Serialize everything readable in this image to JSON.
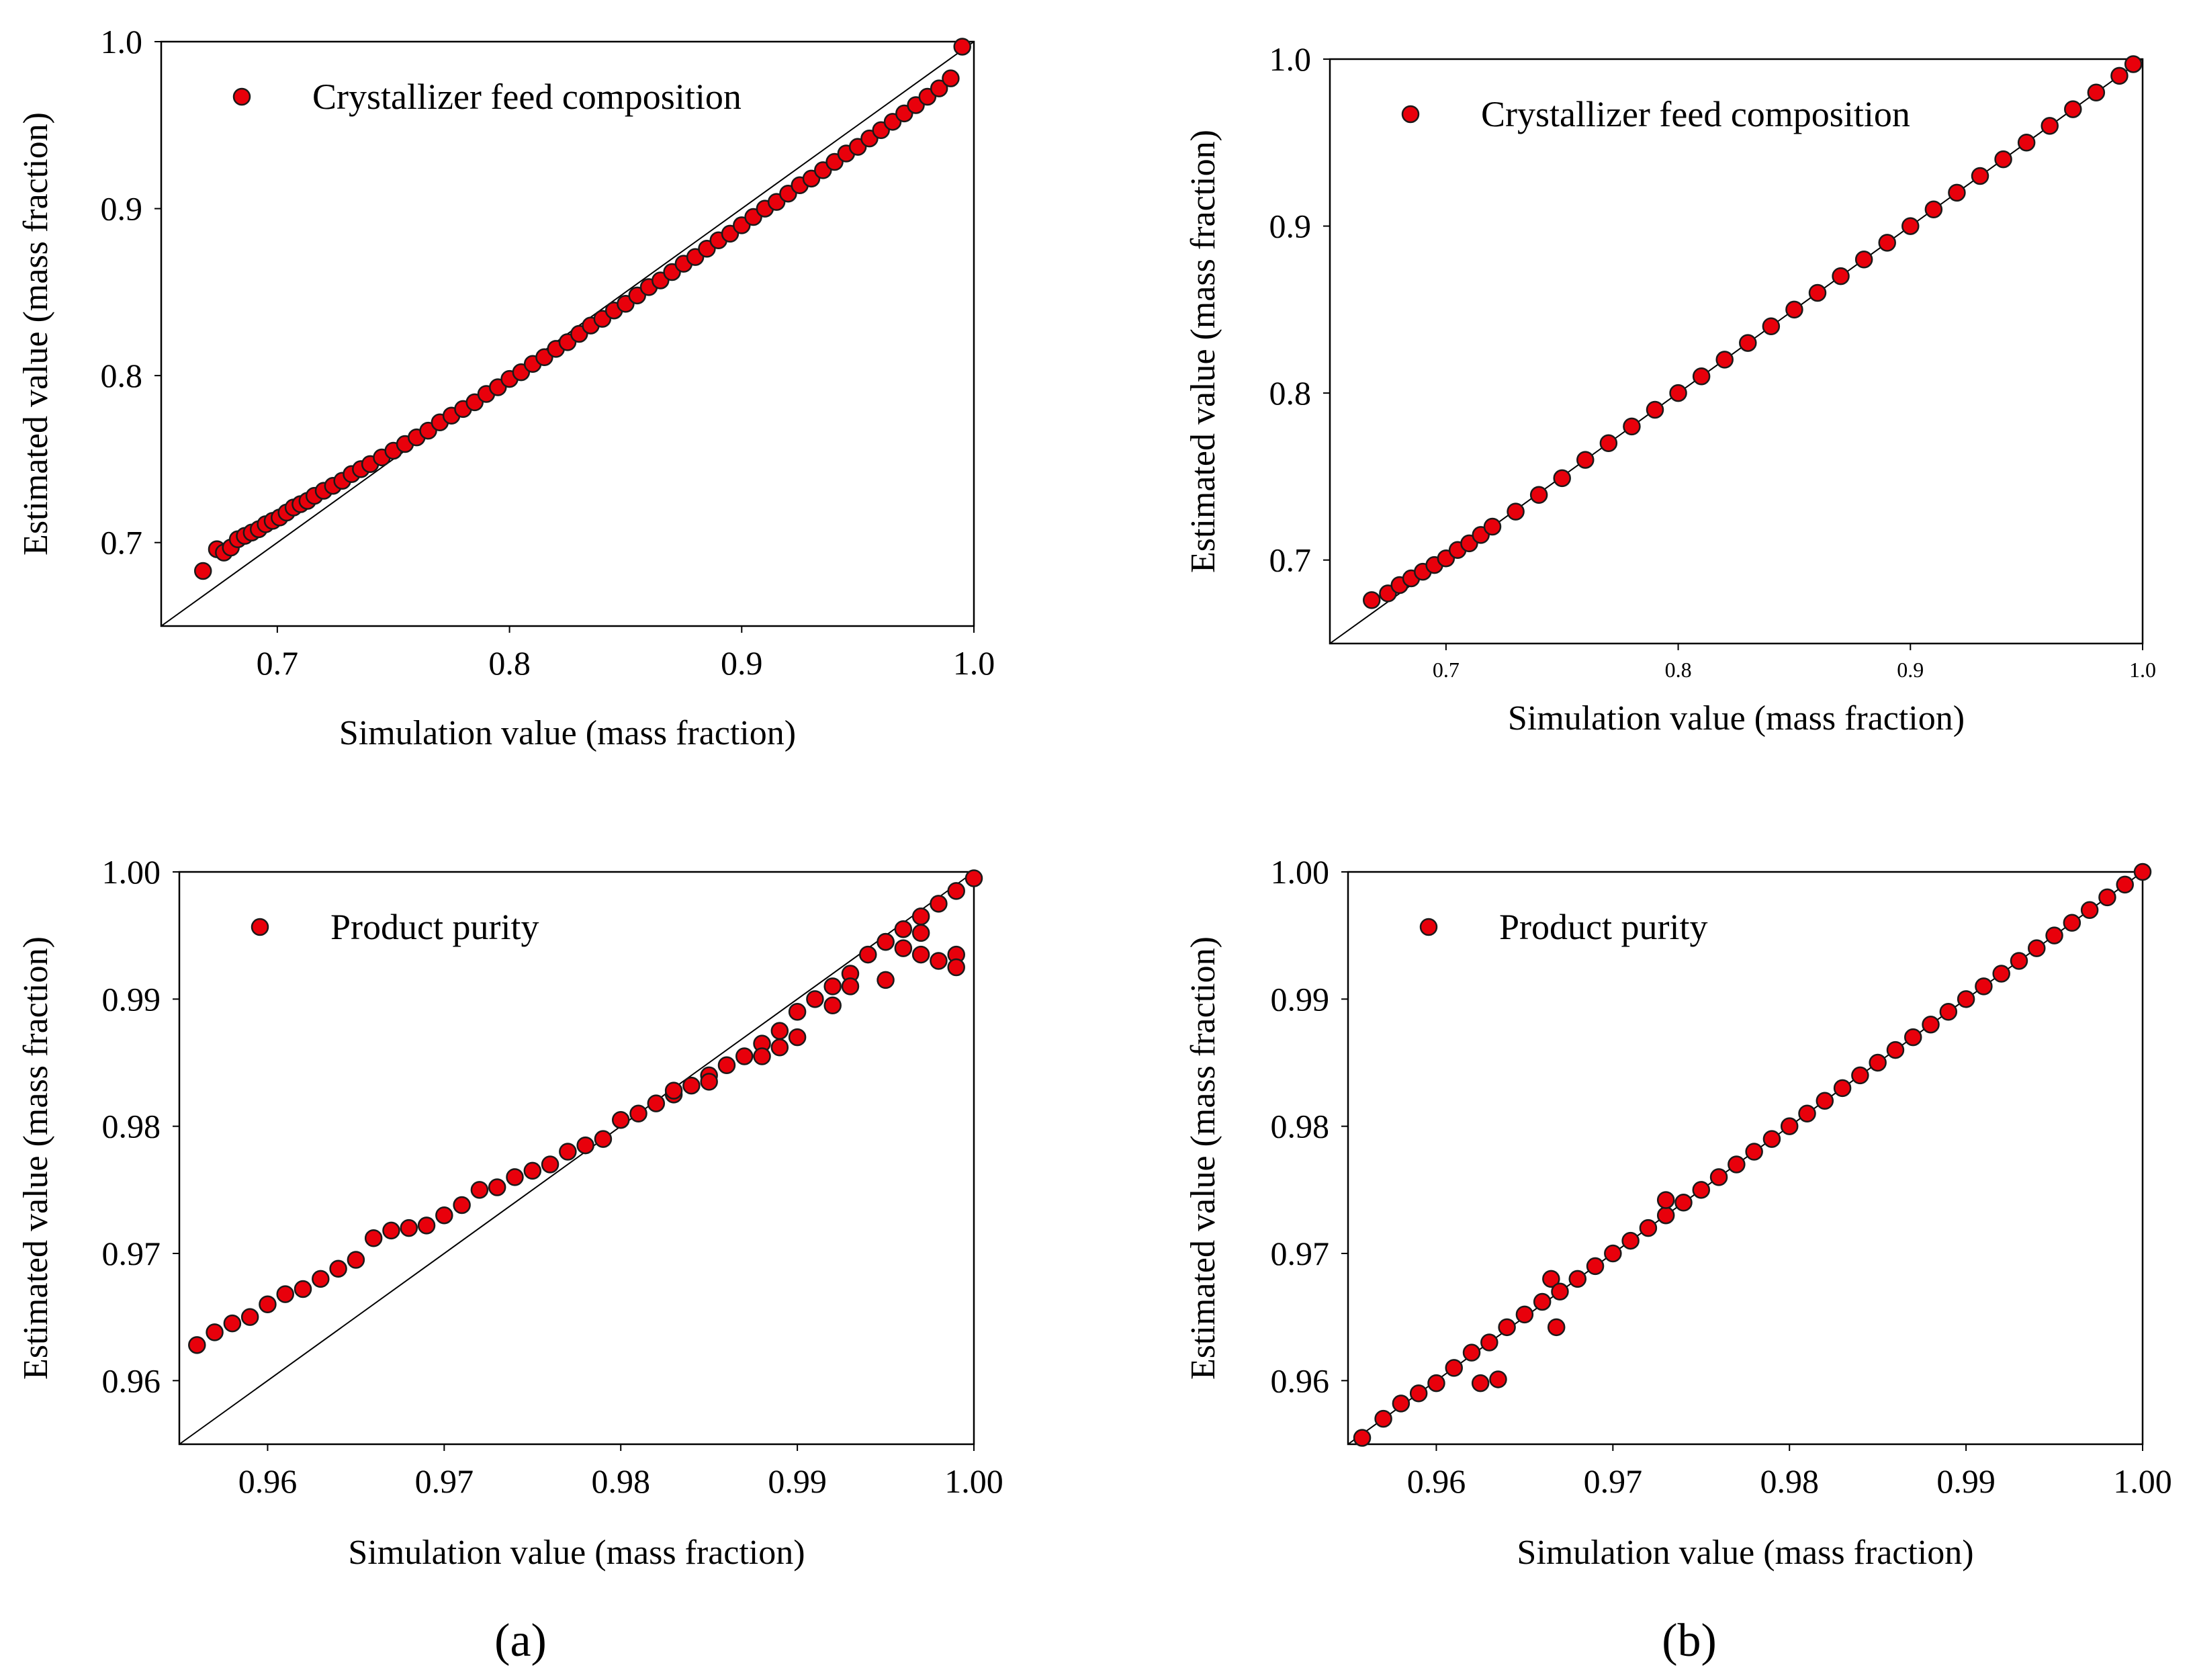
{
  "colors": {
    "marker_fill": "#e8000b",
    "marker_stroke": "#1a1a1a",
    "axis": "#000000",
    "diagonal": "#000000"
  },
  "captions": {
    "a": "(a)",
    "b": "(b)"
  },
  "chart_data": [
    {
      "id": "a1",
      "type": "scatter",
      "panel": "a",
      "legend": "Crystallizer feed composition",
      "legend_placement": "top-left",
      "xlabel": "Simulation value (mass fraction)",
      "ylabel": "Estimated value (mass fraction)",
      "xlim": [
        0.65,
        1.0
      ],
      "ylim": [
        0.65,
        1.0
      ],
      "xticks": [
        0.7,
        0.8,
        0.9,
        1.0
      ],
      "xtick_labels": [
        "0.7",
        "0.8",
        "0.9",
        "1.0"
      ],
      "yticks": [
        0.7,
        0.8,
        0.9,
        1.0
      ],
      "ytick_labels": [
        "0.7",
        "0.8",
        "0.9",
        "1.0"
      ],
      "diagonal": [
        [
          0.65,
          0.65
        ],
        [
          1.0,
          1.0
        ]
      ],
      "x": [
        0.668,
        0.674,
        0.677,
        0.68,
        0.683,
        0.686,
        0.689,
        0.692,
        0.695,
        0.698,
        0.701,
        0.704,
        0.707,
        0.71,
        0.713,
        0.716,
        0.72,
        0.724,
        0.728,
        0.732,
        0.736,
        0.74,
        0.745,
        0.75,
        0.755,
        0.76,
        0.765,
        0.77,
        0.775,
        0.78,
        0.785,
        0.79,
        0.795,
        0.8,
        0.805,
        0.81,
        0.815,
        0.82,
        0.825,
        0.83,
        0.835,
        0.84,
        0.845,
        0.85,
        0.855,
        0.86,
        0.865,
        0.87,
        0.875,
        0.88,
        0.885,
        0.89,
        0.895,
        0.9,
        0.905,
        0.91,
        0.915,
        0.92,
        0.925,
        0.93,
        0.935,
        0.94,
        0.945,
        0.95,
        0.955,
        0.96,
        0.965,
        0.97,
        0.975,
        0.98,
        0.985,
        0.99,
        0.995
      ],
      "y": [
        0.683,
        0.696,
        0.694,
        0.697,
        0.702,
        0.704,
        0.706,
        0.708,
        0.711,
        0.713,
        0.715,
        0.718,
        0.721,
        0.723,
        0.725,
        0.728,
        0.731,
        0.734,
        0.737,
        0.741,
        0.744,
        0.747,
        0.751,
        0.755,
        0.759,
        0.763,
        0.767,
        0.772,
        0.776,
        0.78,
        0.784,
        0.789,
        0.793,
        0.798,
        0.802,
        0.807,
        0.811,
        0.816,
        0.82,
        0.825,
        0.83,
        0.834,
        0.839,
        0.843,
        0.848,
        0.853,
        0.857,
        0.862,
        0.867,
        0.871,
        0.876,
        0.881,
        0.885,
        0.89,
        0.895,
        0.9,
        0.904,
        0.909,
        0.914,
        0.918,
        0.923,
        0.928,
        0.933,
        0.937,
        0.942,
        0.947,
        0.952,
        0.957,
        0.962,
        0.967,
        0.972,
        0.978,
        0.997
      ]
    },
    {
      "id": "b1",
      "type": "scatter",
      "panel": "b",
      "legend": "Crystallizer feed composition",
      "legend_placement": "top-left",
      "xlabel": "Simulation value (mass fraction)",
      "ylabel": "Estimated value (mass fraction)",
      "xlim": [
        0.65,
        1.0
      ],
      "ylim": [
        0.65,
        1.0
      ],
      "xticks": [
        0.7,
        0.8,
        0.9,
        1.0
      ],
      "xtick_labels": [
        "0.7",
        "0.8",
        "0.9",
        "1.0"
      ],
      "yticks": [
        0.7,
        0.8,
        0.9,
        1.0
      ],
      "ytick_labels": [
        "0.7",
        "0.8",
        "0.9",
        "1.0"
      ],
      "diagonal": [
        [
          0.65,
          0.65
        ],
        [
          1.0,
          1.0
        ]
      ],
      "x": [
        0.668,
        0.675,
        0.68,
        0.685,
        0.69,
        0.695,
        0.7,
        0.705,
        0.71,
        0.715,
        0.72,
        0.73,
        0.74,
        0.75,
        0.76,
        0.77,
        0.78,
        0.79,
        0.8,
        0.81,
        0.82,
        0.83,
        0.84,
        0.85,
        0.86,
        0.87,
        0.88,
        0.89,
        0.9,
        0.91,
        0.92,
        0.93,
        0.94,
        0.95,
        0.96,
        0.97,
        0.98,
        0.99,
        0.996
      ],
      "y": [
        0.676,
        0.68,
        0.685,
        0.689,
        0.693,
        0.697,
        0.701,
        0.706,
        0.71,
        0.715,
        0.72,
        0.729,
        0.739,
        0.749,
        0.76,
        0.77,
        0.78,
        0.79,
        0.8,
        0.81,
        0.82,
        0.83,
        0.84,
        0.85,
        0.86,
        0.87,
        0.88,
        0.89,
        0.9,
        0.91,
        0.92,
        0.93,
        0.94,
        0.95,
        0.96,
        0.97,
        0.98,
        0.99,
        0.997
      ]
    },
    {
      "id": "a2",
      "type": "scatter",
      "panel": "a",
      "legend": "Product purity",
      "legend_placement": "top-left",
      "xlabel": "Simulation value (mass fraction)",
      "ylabel": "Estimated value (mass fraction)",
      "xlim": [
        0.955,
        1.0
      ],
      "ylim": [
        0.955,
        1.0
      ],
      "xticks": [
        0.96,
        0.97,
        0.98,
        0.99,
        1.0
      ],
      "xtick_labels": [
        "0.96",
        "0.97",
        "0.98",
        "0.99",
        "1.00"
      ],
      "yticks": [
        0.96,
        0.97,
        0.98,
        0.99,
        1.0
      ],
      "ytick_labels": [
        "0.96",
        "0.97",
        "0.98",
        "0.99",
        "1.00"
      ],
      "diagonal": [
        [
          0.955,
          0.955
        ],
        [
          1.0,
          1.0
        ]
      ],
      "x": [
        0.956,
        0.957,
        0.958,
        0.959,
        0.96,
        0.961,
        0.962,
        0.963,
        0.964,
        0.965,
        0.966,
        0.967,
        0.968,
        0.969,
        0.97,
        0.971,
        0.972,
        0.973,
        0.974,
        0.975,
        0.976,
        0.977,
        0.978,
        0.979,
        0.98,
        0.981,
        0.982,
        0.983,
        0.984,
        0.985,
        0.986,
        0.987,
        0.988,
        0.989,
        0.99,
        0.991,
        0.992,
        0.993,
        0.994,
        0.995,
        0.996,
        0.997,
        0.998,
        0.999,
        1.0,
        0.999,
        0.998,
        0.997,
        0.996,
        0.995,
        0.993,
        0.99,
        0.988,
        0.985,
        0.983,
        0.999,
        0.997,
        0.995,
        0.992,
        0.989
      ],
      "y": [
        0.9628,
        0.9638,
        0.9645,
        0.965,
        0.966,
        0.9668,
        0.9672,
        0.968,
        0.9688,
        0.9695,
        0.9712,
        0.9718,
        0.972,
        0.9722,
        0.973,
        0.9738,
        0.975,
        0.9752,
        0.976,
        0.9765,
        0.977,
        0.978,
        0.9785,
        0.979,
        0.9805,
        0.981,
        0.9818,
        0.9825,
        0.9832,
        0.984,
        0.9848,
        0.9855,
        0.9865,
        0.9875,
        0.989,
        0.99,
        0.991,
        0.992,
        0.9935,
        0.9945,
        0.9955,
        0.9965,
        0.9975,
        0.9985,
        0.9995,
        0.9935,
        0.993,
        0.9935,
        0.994,
        0.9945,
        0.991,
        0.987,
        0.9855,
        0.9835,
        0.9828,
        0.9925,
        0.9952,
        0.9915,
        0.9895,
        0.9862
      ]
    },
    {
      "id": "b2",
      "type": "scatter",
      "panel": "b",
      "legend": "Product purity",
      "legend_placement": "top-left",
      "xlabel": "Simulation value (mass fraction)",
      "ylabel": "Estimated value (mass fraction)",
      "xlim": [
        0.955,
        1.0
      ],
      "ylim": [
        0.955,
        1.0
      ],
      "xticks": [
        0.96,
        0.97,
        0.98,
        0.99,
        1.0
      ],
      "xtick_labels": [
        "0.96",
        "0.97",
        "0.98",
        "0.99",
        "1.00"
      ],
      "yticks": [
        0.96,
        0.97,
        0.98,
        0.99,
        1.0
      ],
      "ytick_labels": [
        "0.96",
        "0.97",
        "0.98",
        "0.99",
        "1.00"
      ],
      "diagonal": [
        [
          0.955,
          0.955
        ],
        [
          1.0,
          1.0
        ]
      ],
      "x": [
        0.9558,
        0.957,
        0.958,
        0.959,
        0.96,
        0.961,
        0.962,
        0.963,
        0.964,
        0.965,
        0.966,
        0.9665,
        0.967,
        0.968,
        0.969,
        0.97,
        0.971,
        0.972,
        0.973,
        0.974,
        0.975,
        0.976,
        0.977,
        0.978,
        0.979,
        0.98,
        0.981,
        0.982,
        0.983,
        0.984,
        0.985,
        0.986,
        0.987,
        0.988,
        0.989,
        0.99,
        0.991,
        0.992,
        0.993,
        0.994,
        0.995,
        0.996,
        0.997,
        0.998,
        0.999,
        1.0,
        0.9625,
        0.9668,
        0.973,
        0.9635
      ],
      "y": [
        0.9555,
        0.957,
        0.9582,
        0.959,
        0.9598,
        0.961,
        0.9622,
        0.963,
        0.9642,
        0.9652,
        0.9662,
        0.968,
        0.967,
        0.968,
        0.969,
        0.97,
        0.971,
        0.972,
        0.973,
        0.974,
        0.975,
        0.976,
        0.977,
        0.978,
        0.979,
        0.98,
        0.981,
        0.982,
        0.983,
        0.984,
        0.985,
        0.986,
        0.987,
        0.988,
        0.989,
        0.99,
        0.991,
        0.992,
        0.993,
        0.994,
        0.995,
        0.996,
        0.997,
        0.998,
        0.999,
        1.0,
        0.9598,
        0.9642,
        0.9742,
        0.9601
      ]
    }
  ]
}
